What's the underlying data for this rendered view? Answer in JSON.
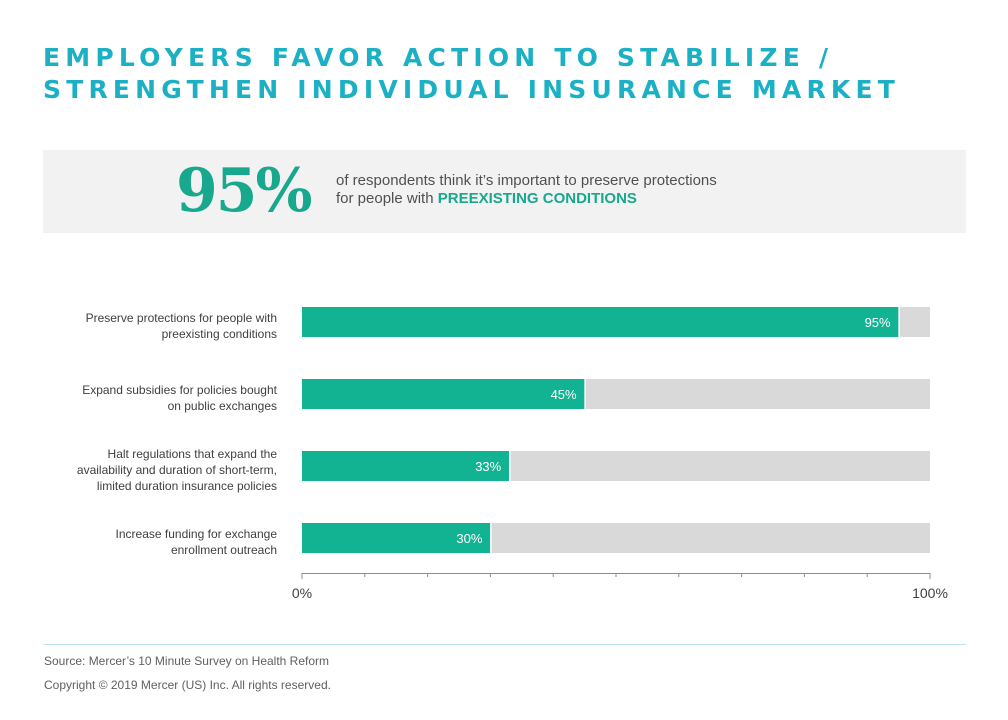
{
  "title_lines": [
    "EMPLOYERS FAVOR ACTION TO STABILIZE /",
    "STRENGTHEN INDIVIDUAL INSURANCE MARKET"
  ],
  "callout": {
    "stat": "95%",
    "text_line1": "of respondents think it’s important to preserve protections",
    "text_line2_prefix": "for people with ",
    "text_line2_highlight": "PREEXISTING CONDITIONS"
  },
  "chart_data": {
    "type": "bar",
    "orientation": "horizontal",
    "categories": [
      [
        "Preserve  protections for people with",
        "preexisting conditions"
      ],
      [
        "Expand subsidies for policies bought",
        "on public exchanges"
      ],
      [
        "Halt regulations that expand the",
        "availability and duration of short-term,",
        "limited duration insurance policies"
      ],
      [
        "Increase funding for exchange",
        "enrollment outreach"
      ]
    ],
    "values": [
      95,
      45,
      33,
      30
    ],
    "value_labels": [
      "95%",
      "45%",
      "33%",
      "30%"
    ],
    "xlim": [
      0,
      100
    ],
    "x_tick_labels": [
      "0%",
      "100%"
    ],
    "stacked_remainder": true,
    "colors": {
      "bar": "#12b393",
      "remainder": "#d9d9d9",
      "axis": "#8c8c8c"
    }
  },
  "footer": {
    "source": "Source: Mercer’s 10 Minute Survey on Health Reform",
    "copyright": "Copyright © 2019 Mercer (US) Inc. All rights reserved."
  }
}
